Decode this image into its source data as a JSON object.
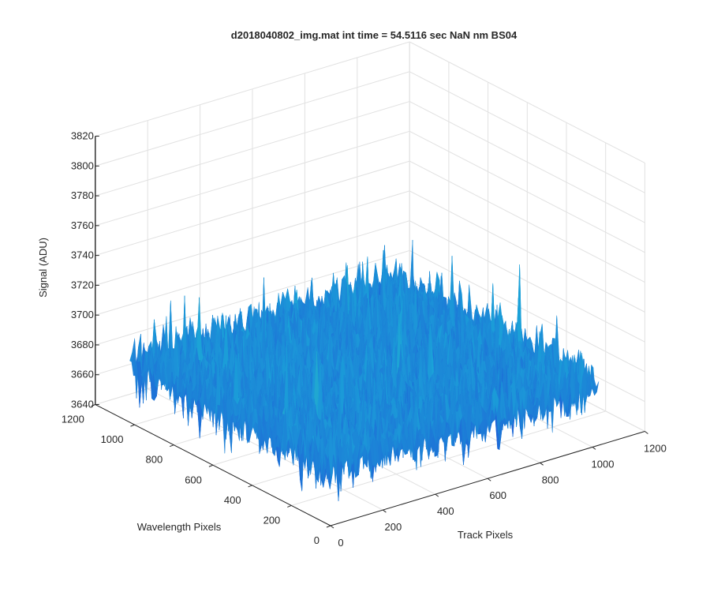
{
  "chart_data": {
    "type": "surface",
    "title": "d2018040802_img.mat int time = 54.5116 sec   NaN nm BS04",
    "xlabel": "Track Pixels",
    "ylabel": "Wavelength Pixels",
    "zlabel": "Signal (ADU)",
    "xlim": [
      0,
      1200
    ],
    "ylim": [
      0,
      1200
    ],
    "zlim": [
      3640,
      3820
    ],
    "x_ticks": [
      0,
      200,
      400,
      600,
      800,
      1000,
      1200
    ],
    "y_ticks": [
      0,
      200,
      400,
      600,
      800,
      1000,
      1200
    ],
    "z_ticks": [
      3640,
      3660,
      3680,
      3700,
      3720,
      3740,
      3760,
      3780,
      3800,
      3820
    ],
    "grid": true,
    "surface": {
      "x_range": [
        0,
        1024
      ],
      "y_range": [
        0,
        1024
      ],
      "mean": 3680,
      "noise_min": 3652,
      "noise_max": 3740,
      "colormap": "parula"
    },
    "colors": {
      "surface_low": "#1f4fd6",
      "surface_mid": "#1ba2d8",
      "surface_high": "#3fcaa0",
      "grid": "#e1e1e1",
      "axis": "#262626"
    }
  }
}
